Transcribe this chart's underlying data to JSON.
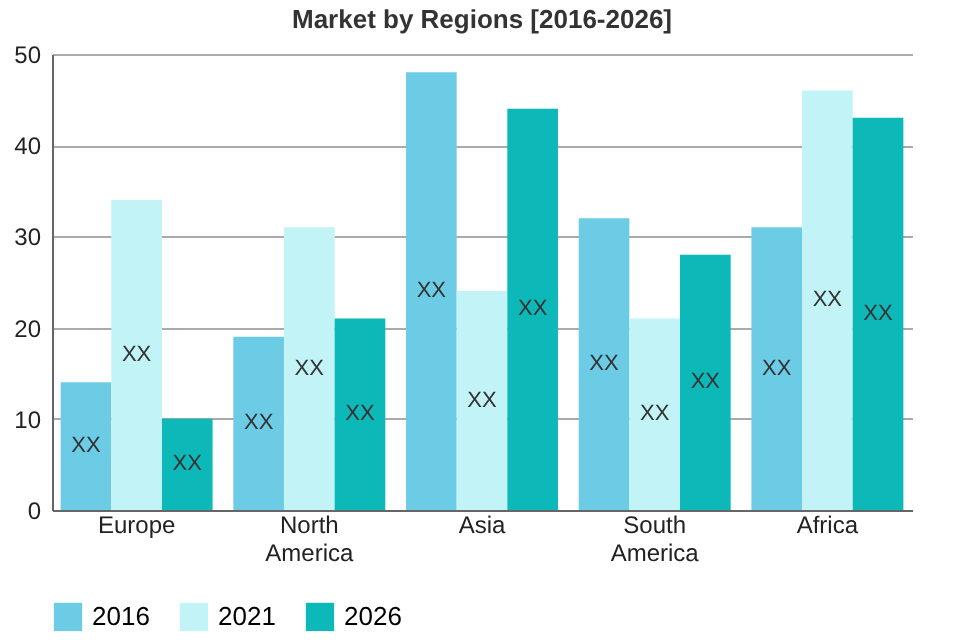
{
  "chart_data": {
    "type": "bar",
    "title": "Market by Regions [2016-2026]",
    "categories": [
      "Europe",
      "North America",
      "Asia",
      "South America",
      "Africa"
    ],
    "series": [
      {
        "name": "2016",
        "color": "#6ccce6",
        "values": [
          14,
          19,
          48,
          32,
          31
        ],
        "value_labels": [
          "XX",
          "XX",
          "XX",
          "XX",
          "XX"
        ]
      },
      {
        "name": "2021",
        "color": "#c2f3f7",
        "values": [
          34,
          31,
          24,
          21,
          46
        ],
        "value_labels": [
          "XX",
          "XX",
          "XX",
          "XX",
          "XX"
        ]
      },
      {
        "name": "2026",
        "color": "#0db8b8",
        "values": [
          10,
          21,
          44,
          28,
          43
        ],
        "value_labels": [
          "XX",
          "XX",
          "XX",
          "XX",
          "XX"
        ]
      }
    ],
    "ylim": [
      0,
      50
    ],
    "yticks": [
      0,
      10,
      20,
      30,
      40,
      50
    ],
    "grid": "y",
    "legend": "bottom"
  }
}
